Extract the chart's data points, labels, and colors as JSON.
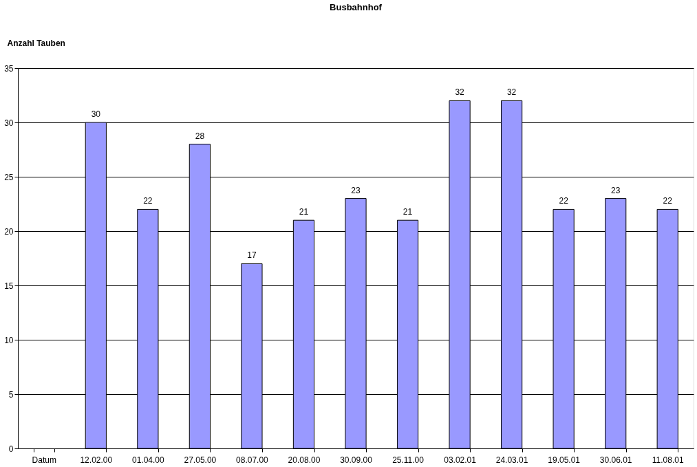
{
  "chart_data": {
    "type": "bar",
    "title": "Busbahnhof",
    "ylabel": "Anzahl Tauben",
    "categories": [
      "Datum",
      "12.02.00",
      "01.04.00",
      "27.05.00",
      "08.07.00",
      "20.08.00",
      "30.09.00",
      "25.11.00",
      "03.02.01",
      "24.03.01",
      "19.05.01",
      "30.06.01",
      "11.08.01"
    ],
    "values": [
      null,
      30,
      22,
      28,
      17,
      21,
      23,
      21,
      32,
      32,
      22,
      23,
      22
    ],
    "color": "#9999ff",
    "ylim": [
      0,
      35
    ],
    "yticks": [
      0,
      5,
      10,
      15,
      20,
      25,
      30,
      35
    ],
    "grid": "y",
    "data_labels": true
  }
}
